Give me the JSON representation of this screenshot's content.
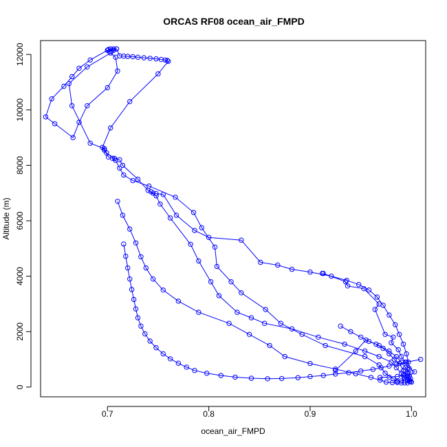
{
  "chart_data": {
    "type": "line",
    "title": "ORCAS RF08 ocean_air_FMPD",
    "xlabel": "ocean_air_FMPD",
    "ylabel": "Altitude (m)",
    "xlim": [
      0.634,
      1.014
    ],
    "ylim": [
      -350,
      12500
    ],
    "xticks": [
      0.7,
      0.8,
      0.9,
      1.0
    ],
    "xtick_labels": [
      "0.7",
      "0.8",
      "0.9",
      "1.0"
    ],
    "yticks": [
      0,
      2000,
      4000,
      6000,
      8000,
      10000,
      12000
    ],
    "ytick_labels": [
      "0",
      "2000",
      "4000",
      "6000",
      "8000",
      "10000",
      "12000"
    ],
    "grid": false,
    "legend": "none",
    "color": "#0000ff",
    "marker": "open-circle",
    "series": [
      {
        "x": [
          0.709,
          0.706,
          0.703,
          0.701,
          0.7,
          0.702,
          0.704,
          0.706,
          0.709,
          0.712,
          0.716,
          0.72,
          0.725,
          0.73,
          0.736,
          0.742,
          0.748,
          0.753,
          0.757,
          0.759,
          0.76,
          0.75,
          0.722,
          0.703,
          0.695,
          0.697,
          0.701,
          0.705,
          0.708,
          0.712,
          0.716,
          0.725,
          0.741,
          0.767,
          0.785,
          0.793,
          0.806,
          0.808,
          0.822,
          0.832,
          0.856,
          0.871,
          0.892,
          0.915,
          0.954,
          0.968,
          0.974,
          0.982,
          0.986,
          0.99,
          0.993,
          0.996,
          0.998,
          0.999,
          0.997,
          0.994,
          0.99,
          0.985,
          0.978,
          0.968,
          0.955,
          0.945,
          0.925
        ],
        "y": [
          12200,
          12200,
          12200,
          12180,
          12150,
          12100,
          12120,
          12150,
          12200,
          11950,
          11940,
          11930,
          11920,
          11900,
          11880,
          11860,
          11840,
          11820,
          11800,
          11780,
          11750,
          11300,
          10300,
          9350,
          8650,
          8550,
          8300,
          8250,
          8180,
          7900,
          7650,
          7450,
          7250,
          6850,
          6300,
          5750,
          5050,
          4350,
          3800,
          3400,
          2800,
          2300,
          1900,
          1500,
          1100,
          800,
          500,
          300,
          200,
          150,
          150,
          150,
          200,
          300,
          500,
          700,
          900,
          1100,
          1300,
          1500,
          1700,
          1300,
          600
        ]
      },
      {
        "x": [
          0.7,
          0.683,
          0.672,
          0.665,
          0.657,
          0.645,
          0.639,
          0.648,
          0.666,
          0.672,
          0.68,
          0.7,
          0.71,
          0.708,
          0.703,
          0.68,
          0.662,
          0.665,
          0.683,
          0.697,
          0.699,
          0.707,
          0.712,
          0.715,
          0.73,
          0.74,
          0.748,
          0.752,
          0.762,
          0.782,
          0.79,
          0.802,
          0.81,
          0.828,
          0.842,
          0.855,
          0.882,
          0.908,
          0.934,
          0.954,
          0.968,
          0.98,
          0.985,
          0.99,
          0.993,
          0.996,
          0.999,
          1.0,
          0.998,
          0.995,
          0.992,
          0.988,
          0.983,
          0.978,
          0.972,
          0.965,
          0.958,
          0.95,
          0.94,
          0.93
        ],
        "y": [
          12150,
          11800,
          11500,
          11200,
          10850,
          10400,
          9750,
          9500,
          9000,
          9550,
          10150,
          10800,
          11400,
          11900,
          12050,
          11550,
          10950,
          10150,
          8800,
          8600,
          8450,
          8250,
          8200,
          8000,
          7500,
          7100,
          6900,
          6600,
          6100,
          5150,
          4550,
          3800,
          3300,
          2700,
          2500,
          2300,
          2100,
          1800,
          1550,
          1300,
          1100,
          900,
          700,
          500,
          350,
          250,
          200,
          180,
          250,
          400,
          600,
          850,
          1000,
          1200,
          1400,
          1550,
          1650,
          1800,
          2000,
          2200
        ]
      },
      {
        "x": [
          0.912,
          0.913,
          0.935,
          0.937,
          0.953,
          0.968,
          0.964,
          0.974,
          0.982,
          0.98,
          0.987,
          0.99,
          0.994,
          0.997,
          1.003,
          0.998,
          0.993,
          0.99,
          0.986,
          0.981,
          0.975,
          0.969,
          0.96,
          0.945,
          0.925,
          0.9,
          0.875,
          0.86,
          0.84,
          0.82,
          0.79,
          0.77,
          0.755,
          0.745,
          0.738,
          0.733,
          0.728,
          0.722,
          0.715,
          0.71
        ],
        "y": [
          4100,
          4100,
          3800,
          3650,
          3550,
          3000,
          2800,
          1900,
          1800,
          1600,
          1350,
          1100,
          900,
          700,
          550,
          400,
          300,
          220,
          170,
          160,
          180,
          250,
          350,
          480,
          650,
          850,
          1100,
          1500,
          1900,
          2300,
          2700,
          3100,
          3500,
          3900,
          4300,
          4700,
          5200,
          5700,
          6200,
          6700
        ]
      },
      {
        "x": [
          1.009,
          0.995,
          0.985,
          0.978,
          0.97,
          0.962,
          0.95,
          0.938,
          0.925,
          0.913,
          0.9,
          0.888,
          0.872,
          0.858,
          0.842,
          0.826,
          0.812,
          0.798,
          0.786,
          0.778,
          0.77,
          0.762,
          0.755,
          0.748,
          0.742,
          0.737,
          0.733,
          0.73,
          0.728,
          0.726,
          0.724,
          0.722,
          0.72,
          0.718,
          0.716
        ],
        "y": [
          1000,
          900,
          820,
          760,
          700,
          640,
          580,
          520,
          470,
          420,
          380,
          340,
          310,
          300,
          320,
          360,
          420,
          500,
          600,
          720,
          860,
          1020,
          1200,
          1420,
          1660,
          1920,
          2200,
          2500,
          2820,
          3160,
          3520,
          3900,
          4300,
          4720,
          5160
        ]
      },
      {
        "x": [
          0.743,
          0.745,
          0.748,
          0.755,
          0.768,
          0.786,
          0.8,
          0.832,
          0.851,
          0.868,
          0.882,
          0.9,
          0.921,
          0.936,
          0.948,
          0.958,
          0.966,
          0.972,
          0.978,
          0.984,
          0.988,
          0.992,
          0.995,
          0.997,
          0.998,
          0.996,
          0.992,
          0.986,
          0.978,
          0.969
        ],
        "y": [
          7050,
          7000,
          6980,
          6950,
          6200,
          5650,
          5400,
          5300,
          4500,
          4400,
          4250,
          4150,
          4000,
          3850,
          3700,
          3500,
          3250,
          2950,
          2600,
          2250,
          1900,
          1550,
          1200,
          900,
          650,
          500,
          420,
          380,
          360,
          350
        ]
      }
    ]
  }
}
